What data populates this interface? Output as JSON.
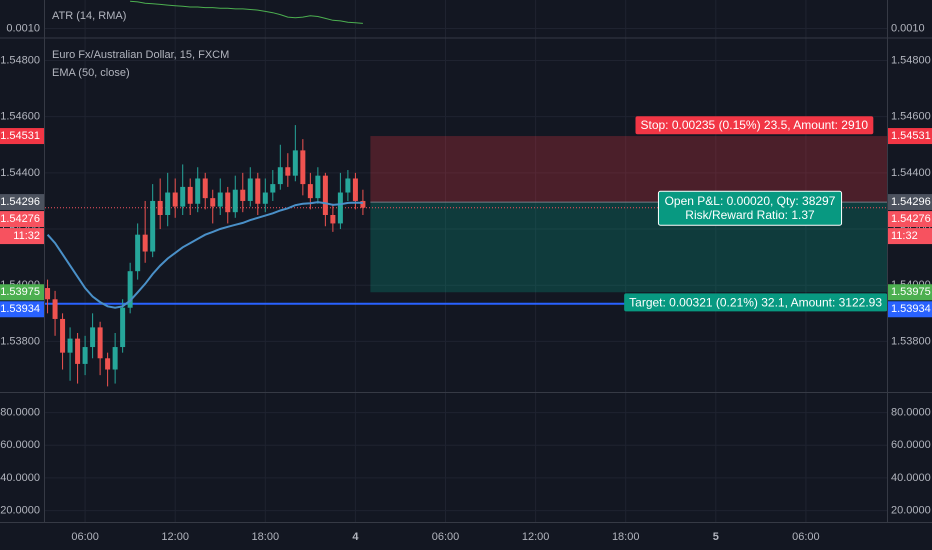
{
  "chart_data": [
    {
      "type": "line",
      "title": "ATR (14, RMA)",
      "color": "#4caf50",
      "x": [
        3.5,
        4,
        4.5,
        5,
        5.5,
        6,
        6.5,
        7,
        7.5,
        8,
        8.5,
        9,
        9.5,
        10,
        10.5,
        11,
        11.5,
        12,
        12.5,
        13,
        13.5,
        14,
        14.5,
        15,
        15.5,
        16,
        16.5,
        17,
        17.5,
        18,
        18.5,
        19,
        19.5,
        20,
        20.5,
        21,
        21.5,
        22,
        22.5,
        23,
        23.5,
        24,
        24.5
      ],
      "values": [
        null,
        null,
        null,
        null,
        null,
        null,
        null,
        null,
        null,
        null,
        null,
        0.00143,
        0.00142,
        0.0014,
        0.00139,
        0.00138,
        0.00137,
        0.00136,
        0.00135,
        0.00134,
        0.00134,
        0.00133,
        0.00133,
        0.00132,
        0.00132,
        0.00131,
        0.00131,
        0.0013,
        0.00129,
        0.00127,
        0.00125,
        0.00122,
        0.00118,
        0.00117,
        0.00118,
        0.0012,
        0.00119,
        0.00116,
        0.00113,
        0.00112,
        0.0011,
        0.00109,
        0.00108
      ],
      "xlim": [
        3.33,
        59.4
      ],
      "ylim": [
        0.00085,
        0.00145
      ],
      "yticks": [
        {
          "value": 0.001,
          "label": "0.0010"
        }
      ]
    },
    {
      "type": "candlestick",
      "title": "Euro Fx/Australian Dollar, 15, FXCM",
      "up_color": "#26a69a",
      "down_color": "#ef5350",
      "x": [
        3.5,
        4,
        4.5,
        5,
        5.5,
        6,
        6.5,
        7,
        7.5,
        8,
        8.5,
        9,
        9.5,
        10,
        10.5,
        11,
        11.5,
        12,
        12.5,
        13,
        13.5,
        14,
        14.5,
        15,
        15.5,
        16,
        16.5,
        17,
        17.5,
        18,
        18.5,
        19,
        19.5,
        20,
        20.5,
        21,
        21.5,
        22,
        22.5,
        23,
        23.5,
        24,
        24.5
      ],
      "open": [
        1.5399,
        1.5395,
        1.5388,
        1.5376,
        1.5381,
        1.5372,
        1.5378,
        1.5385,
        1.5374,
        1.537,
        1.5378,
        1.5392,
        1.5405,
        1.5418,
        1.5412,
        1.543,
        1.5425,
        1.5433,
        1.5428,
        1.5435,
        1.5429,
        1.5438,
        1.5431,
        1.5428,
        1.5433,
        1.5426,
        1.5434,
        1.543,
        1.5438,
        1.5429,
        1.5433,
        1.5436,
        1.5442,
        1.5439,
        1.5448,
        1.5436,
        1.5431,
        1.5439,
        1.5425,
        1.5422,
        1.5433,
        1.5438,
        1.543
      ],
      "high": [
        1.5402,
        1.5398,
        1.539,
        1.5385,
        1.5383,
        1.5382,
        1.539,
        1.5387,
        1.5376,
        1.5383,
        1.5395,
        1.5408,
        1.5422,
        1.543,
        1.5436,
        1.5438,
        1.544,
        1.5438,
        1.5443,
        1.5438,
        1.5442,
        1.544,
        1.5434,
        1.5438,
        1.5435,
        1.5439,
        1.544,
        1.5442,
        1.544,
        1.5438,
        1.5441,
        1.545,
        1.5447,
        1.5457,
        1.5452,
        1.544,
        1.5442,
        1.544,
        1.5429,
        1.544,
        1.5441,
        1.544,
        1.5434
      ],
      "low": [
        1.539,
        1.5382,
        1.537,
        1.5366,
        1.5365,
        1.5368,
        1.5374,
        1.5368,
        1.5364,
        1.5365,
        1.5376,
        1.539,
        1.5402,
        1.5408,
        1.541,
        1.542,
        1.5421,
        1.5424,
        1.5425,
        1.5425,
        1.5426,
        1.5427,
        1.5422,
        1.5425,
        1.5422,
        1.5424,
        1.5426,
        1.5428,
        1.5425,
        1.5426,
        1.543,
        1.5434,
        1.5435,
        1.5437,
        1.5432,
        1.5427,
        1.5429,
        1.5421,
        1.5419,
        1.542,
        1.543,
        1.5427,
        1.5425
      ],
      "close": [
        1.5395,
        1.5388,
        1.5376,
        1.5381,
        1.5372,
        1.5378,
        1.5385,
        1.5374,
        1.537,
        1.5378,
        1.5392,
        1.5405,
        1.5418,
        1.5412,
        1.543,
        1.5425,
        1.5433,
        1.5428,
        1.5435,
        1.5429,
        1.5438,
        1.5431,
        1.5428,
        1.5433,
        1.5426,
        1.5434,
        1.543,
        1.5438,
        1.5429,
        1.5433,
        1.5436,
        1.5442,
        1.5439,
        1.5448,
        1.5436,
        1.5431,
        1.5439,
        1.5425,
        1.5422,
        1.5433,
        1.5438,
        1.543,
        1.54276
      ],
      "overlays": [
        {
          "name": "EMA (50, close)",
          "color": "#4a90c8",
          "values": [
            1.5418,
            1.5415,
            1.5411,
            1.5407,
            1.5403,
            1.5399,
            1.5396,
            1.5394,
            1.53925,
            1.5392,
            1.53925,
            1.53945,
            1.53975,
            1.54005,
            1.5404,
            1.5407,
            1.54095,
            1.54115,
            1.54135,
            1.5415,
            1.54165,
            1.5418,
            1.5419,
            1.542,
            1.54208,
            1.54215,
            1.54222,
            1.54232,
            1.5424,
            1.54248,
            1.54256,
            1.54266,
            1.54274,
            1.54285,
            1.5429,
            1.54292,
            1.54296,
            1.54292,
            1.54286,
            1.54288,
            1.54293,
            1.54294,
            1.54293
          ]
        }
      ],
      "xlim": [
        3.33,
        59.4
      ],
      "ylim": [
        1.5362,
        1.5488
      ],
      "xticks": [
        {
          "value": 6,
          "label": "06:00"
        },
        {
          "value": 12,
          "label": "12:00"
        },
        {
          "value": 18,
          "label": "18:00"
        },
        {
          "value": 24,
          "label": "4"
        },
        {
          "value": 30,
          "label": "06:00"
        },
        {
          "value": 36,
          "label": "12:00"
        },
        {
          "value": 42,
          "label": "18:00"
        },
        {
          "value": 48,
          "label": "5"
        },
        {
          "value": 54,
          "label": "06:00"
        }
      ],
      "yticks": [
        {
          "value": 1.548,
          "label": "1.54800"
        },
        {
          "value": 1.546,
          "label": "1.54600"
        },
        {
          "value": 1.544,
          "label": "1.54400"
        },
        {
          "value": 1.542,
          "label": "1.54200"
        },
        {
          "value": 1.54,
          "label": "1.54000"
        },
        {
          "value": 1.538,
          "label": "1.53800"
        }
      ],
      "price_tags": [
        {
          "value": 1.54531,
          "color": "#f23645"
        },
        {
          "value": 1.54296,
          "color": "#4c525e"
        },
        {
          "value": 1.54276,
          "color": "#f7525f",
          "countdown": "11:32",
          "line": "dotted"
        },
        {
          "value": 1.53975,
          "color": "#4caf50"
        },
        {
          "value": 1.53934,
          "color": "#2962ff",
          "line": "solid"
        }
      ],
      "position": {
        "x_start": 25,
        "entry": 1.54296,
        "stop": 1.54531,
        "target": 1.53975,
        "stop_label": "Stop: 0.00235 (0.15%) 23.5, Amount: 2910",
        "pnl_label": "Open P&L: 0.00020, Qty: 38297",
        "rr_label": "Risk/Reward Ratio: 1.37",
        "target_label": "Target: 0.00321 (0.21%) 32.1, Amount: 3122.93"
      }
    },
    {
      "type": "pane",
      "ylim": [
        13,
        92
      ],
      "yticks": [
        {
          "value": 80,
          "label": "80.0000"
        },
        {
          "value": 60,
          "label": "60.0000"
        },
        {
          "value": 40,
          "label": "40.0000"
        },
        {
          "value": 20,
          "label": "20.0000"
        }
      ]
    }
  ]
}
